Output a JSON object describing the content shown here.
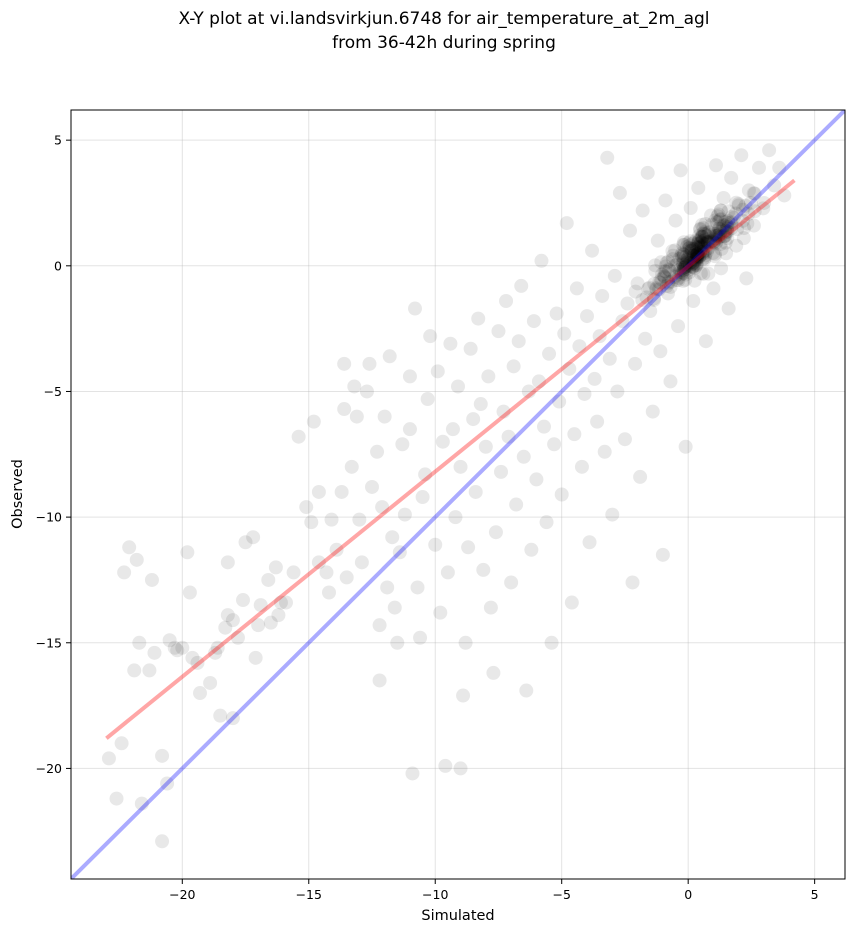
{
  "chart_data": {
    "type": "scatter",
    "title_lines": [
      "X-Y plot at vi.landsvirkjun.6748 for air_temperature_at_2m_agl",
      "from 36-42h during spring"
    ],
    "xlabel": "Simulated",
    "ylabel": "Observed",
    "xlim": [
      -24.4,
      6.2
    ],
    "ylim": [
      -24.4,
      6.2
    ],
    "x_ticks": [
      -20,
      -15,
      -10,
      -5,
      0,
      5
    ],
    "y_ticks": [
      -20,
      -15,
      -10,
      -5,
      0,
      5
    ],
    "x_tick_labels": [
      "−20",
      "−15",
      "−10",
      "−5",
      "0",
      "5"
    ],
    "y_tick_labels": [
      "−20",
      "−15",
      "−10",
      "−5",
      "0",
      "5"
    ],
    "grid": true,
    "point_color": "#000000",
    "point_alpha": 0.09,
    "fit_line": {
      "color": "#ff0000",
      "alpha": 0.35,
      "x": [
        -23.0,
        4.2
      ],
      "y": [
        -18.8,
        3.4
      ]
    },
    "identity_line": {
      "color": "#0000ff",
      "alpha": 0.33,
      "x": [
        -24.4,
        6.2
      ],
      "y": [
        -24.4,
        6.2
      ]
    },
    "points": [
      [
        -22.9,
        -19.6
      ],
      [
        -22.6,
        -21.2
      ],
      [
        -22.4,
        -19.0
      ],
      [
        -22.3,
        -12.2
      ],
      [
        -22.1,
        -11.2
      ],
      [
        -21.9,
        -16.1
      ],
      [
        -21.8,
        -11.7
      ],
      [
        -21.7,
        -15.0
      ],
      [
        -21.6,
        -21.4
      ],
      [
        -21.3,
        -16.1
      ],
      [
        -21.2,
        -12.5
      ],
      [
        -21.1,
        -15.4
      ],
      [
        -20.8,
        -19.5
      ],
      [
        -20.8,
        -22.9
      ],
      [
        -20.6,
        -20.6
      ],
      [
        -20.5,
        -14.9
      ],
      [
        -20.3,
        -15.2
      ],
      [
        -20.2,
        -15.3
      ],
      [
        -20.0,
        -15.2
      ],
      [
        -19.8,
        -11.4
      ],
      [
        -19.7,
        -13.0
      ],
      [
        -19.6,
        -15.6
      ],
      [
        -19.4,
        -15.8
      ],
      [
        -19.3,
        -17.0
      ],
      [
        -18.9,
        -16.6
      ],
      [
        -18.7,
        -15.4
      ],
      [
        -18.6,
        -15.2
      ],
      [
        -18.5,
        -17.9
      ],
      [
        -18.3,
        -14.4
      ],
      [
        -18.2,
        -11.8
      ],
      [
        -18.2,
        -13.9
      ],
      [
        -18.0,
        -14.1
      ],
      [
        -18.0,
        -18.0
      ],
      [
        -17.8,
        -14.8
      ],
      [
        -17.6,
        -13.3
      ],
      [
        -17.5,
        -11.0
      ],
      [
        -17.2,
        -10.8
      ],
      [
        -17.1,
        -15.6
      ],
      [
        -17.0,
        -14.3
      ],
      [
        -16.9,
        -13.5
      ],
      [
        -16.6,
        -12.5
      ],
      [
        -16.5,
        -14.2
      ],
      [
        -16.3,
        -12.0
      ],
      [
        -16.2,
        -13.9
      ],
      [
        -16.1,
        -13.4
      ],
      [
        -15.9,
        -13.4
      ],
      [
        -15.6,
        -12.2
      ],
      [
        -15.4,
        -6.8
      ],
      [
        -15.1,
        -9.6
      ],
      [
        -14.9,
        -10.2
      ],
      [
        -14.8,
        -6.2
      ],
      [
        -14.6,
        -11.8
      ],
      [
        -14.6,
        -9.0
      ],
      [
        -14.3,
        -12.2
      ],
      [
        -14.2,
        -13.0
      ],
      [
        -14.1,
        -10.1
      ],
      [
        -13.9,
        -11.3
      ],
      [
        -13.7,
        -9.0
      ],
      [
        -13.6,
        -3.9
      ],
      [
        -13.6,
        -5.7
      ],
      [
        -13.5,
        -12.4
      ],
      [
        -13.3,
        -8.0
      ],
      [
        -13.2,
        -4.8
      ],
      [
        -13.1,
        -6.0
      ],
      [
        -13.0,
        -10.1
      ],
      [
        -12.9,
        -11.8
      ],
      [
        -12.7,
        -5.0
      ],
      [
        -12.6,
        -3.9
      ],
      [
        -12.5,
        -8.8
      ],
      [
        -12.3,
        -7.4
      ],
      [
        -12.2,
        -14.3
      ],
      [
        -12.2,
        -16.5
      ],
      [
        -12.1,
        -9.6
      ],
      [
        -12.0,
        -6.0
      ],
      [
        -11.9,
        -12.8
      ],
      [
        -11.8,
        -3.6
      ],
      [
        -11.7,
        -10.8
      ],
      [
        -11.6,
        -13.6
      ],
      [
        -11.5,
        -15.0
      ],
      [
        -11.4,
        -11.4
      ],
      [
        -11.3,
        -7.1
      ],
      [
        -11.2,
        -9.9
      ],
      [
        -11.0,
        -4.4
      ],
      [
        -11.0,
        -6.5
      ],
      [
        -10.9,
        -20.2
      ],
      [
        -10.8,
        -1.7
      ],
      [
        -10.7,
        -12.8
      ],
      [
        -10.6,
        -14.8
      ],
      [
        -10.5,
        -9.2
      ],
      [
        -10.4,
        -8.3
      ],
      [
        -10.3,
        -5.3
      ],
      [
        -10.2,
        -2.8
      ],
      [
        -10.0,
        -11.1
      ],
      [
        -9.9,
        -4.2
      ],
      [
        -9.8,
        -13.8
      ],
      [
        -9.7,
        -7.0
      ],
      [
        -9.6,
        -19.9
      ],
      [
        -9.5,
        -12.2
      ],
      [
        -9.4,
        -3.1
      ],
      [
        -9.3,
        -6.5
      ],
      [
        -9.2,
        -10.0
      ],
      [
        -9.1,
        -4.8
      ],
      [
        -9.0,
        -8.0
      ],
      [
        -9.0,
        -20.0
      ],
      [
        -8.9,
        -17.1
      ],
      [
        -8.8,
        -15.0
      ],
      [
        -8.7,
        -11.2
      ],
      [
        -8.6,
        -3.3
      ],
      [
        -8.5,
        -6.1
      ],
      [
        -8.4,
        -9.0
      ],
      [
        -8.3,
        -2.1
      ],
      [
        -8.2,
        -5.5
      ],
      [
        -8.1,
        -12.1
      ],
      [
        -8.0,
        -7.2
      ],
      [
        -7.9,
        -4.4
      ],
      [
        -7.8,
        -13.6
      ],
      [
        -7.7,
        -16.2
      ],
      [
        -7.6,
        -10.6
      ],
      [
        -7.5,
        -2.6
      ],
      [
        -7.4,
        -8.2
      ],
      [
        -7.3,
        -5.8
      ],
      [
        -7.2,
        -1.4
      ],
      [
        -7.1,
        -6.8
      ],
      [
        -7.0,
        -12.6
      ],
      [
        -6.9,
        -4.0
      ],
      [
        -6.8,
        -9.5
      ],
      [
        -6.7,
        -3.0
      ],
      [
        -6.6,
        -0.8
      ],
      [
        -6.5,
        -7.6
      ],
      [
        -6.4,
        -16.9
      ],
      [
        -6.3,
        -5.0
      ],
      [
        -6.2,
        -11.3
      ],
      [
        -6.1,
        -2.2
      ],
      [
        -6.0,
        -8.5
      ],
      [
        -5.9,
        -4.6
      ],
      [
        -5.8,
        0.2
      ],
      [
        -5.7,
        -6.4
      ],
      [
        -5.6,
        -10.2
      ],
      [
        -5.5,
        -3.5
      ],
      [
        -5.4,
        -15.0
      ],
      [
        -5.3,
        -7.1
      ],
      [
        -5.2,
        -1.9
      ],
      [
        -5.1,
        -5.4
      ],
      [
        -5.0,
        -9.1
      ],
      [
        -4.9,
        -2.7
      ],
      [
        -4.8,
        1.7
      ],
      [
        -4.7,
        -4.1
      ],
      [
        -4.6,
        -13.4
      ],
      [
        -4.5,
        -6.7
      ],
      [
        -4.4,
        -0.9
      ],
      [
        -4.3,
        -3.2
      ],
      [
        -4.2,
        -8.0
      ],
      [
        -4.1,
        -5.1
      ],
      [
        -4.0,
        -2.0
      ],
      [
        -3.9,
        -11.0
      ],
      [
        -3.8,
        0.6
      ],
      [
        -3.7,
        -4.5
      ],
      [
        -3.6,
        -6.2
      ],
      [
        -3.5,
        -2.8
      ],
      [
        -3.4,
        -1.2
      ],
      [
        -3.3,
        -7.4
      ],
      [
        -3.2,
        4.3
      ],
      [
        -3.1,
        -3.7
      ],
      [
        -3.0,
        -9.9
      ],
      [
        -2.9,
        -0.4
      ],
      [
        -2.8,
        -5.0
      ],
      [
        -2.7,
        2.9
      ],
      [
        -2.6,
        -2.2
      ],
      [
        -2.5,
        -6.9
      ],
      [
        -2.4,
        -1.5
      ],
      [
        -2.3,
        1.4
      ],
      [
        -2.2,
        -12.6
      ],
      [
        -2.1,
        -3.9
      ],
      [
        -2.0,
        -0.7
      ],
      [
        -1.9,
        -8.4
      ],
      [
        -1.8,
        2.2
      ],
      [
        -1.7,
        -2.9
      ],
      [
        -1.6,
        3.7
      ],
      [
        -1.5,
        -1.8
      ],
      [
        -1.4,
        -5.8
      ],
      [
        -1.3,
        -0.2
      ],
      [
        -1.2,
        1.0
      ],
      [
        -1.1,
        -3.4
      ],
      [
        -1.0,
        -11.5
      ],
      [
        -0.9,
        2.6
      ],
      [
        -0.8,
        -1.1
      ],
      [
        -0.7,
        -4.6
      ],
      [
        -0.6,
        0.4
      ],
      [
        -0.5,
        1.8
      ],
      [
        -0.4,
        -2.4
      ],
      [
        -0.3,
        3.8
      ],
      [
        -0.2,
        -0.6
      ],
      [
        -0.1,
        -7.2
      ],
      [
        0.0,
        0.9
      ],
      [
        0.1,
        2.3
      ],
      [
        0.2,
        -1.4
      ],
      [
        0.3,
        0.2
      ],
      [
        0.4,
        3.1
      ],
      [
        0.5,
        -0.3
      ],
      [
        0.6,
        1.5
      ],
      [
        0.7,
        -3.0
      ],
      [
        0.8,
        0.7
      ],
      [
        0.9,
        2.0
      ],
      [
        1.0,
        -0.9
      ],
      [
        1.1,
        4.0
      ],
      [
        1.2,
        1.2
      ],
      [
        1.3,
        -0.1
      ],
      [
        1.4,
        2.7
      ],
      [
        1.5,
        0.5
      ],
      [
        1.6,
        -1.7
      ],
      [
        1.7,
        3.5
      ],
      [
        1.8,
        1.9
      ],
      [
        1.9,
        0.8
      ],
      [
        2.0,
        2.4
      ],
      [
        2.1,
        4.4
      ],
      [
        2.2,
        1.1
      ],
      [
        2.3,
        -0.5
      ],
      [
        2.4,
        3.0
      ],
      [
        2.6,
        1.6
      ],
      [
        2.8,
        3.9
      ],
      [
        3.0,
        2.5
      ],
      [
        3.2,
        4.6
      ],
      [
        3.4,
        3.2
      ],
      [
        3.6,
        3.9
      ],
      [
        3.8,
        2.8
      ]
    ],
    "cluster": {
      "center": [
        0.4,
        0.6
      ],
      "count": 260
    }
  }
}
